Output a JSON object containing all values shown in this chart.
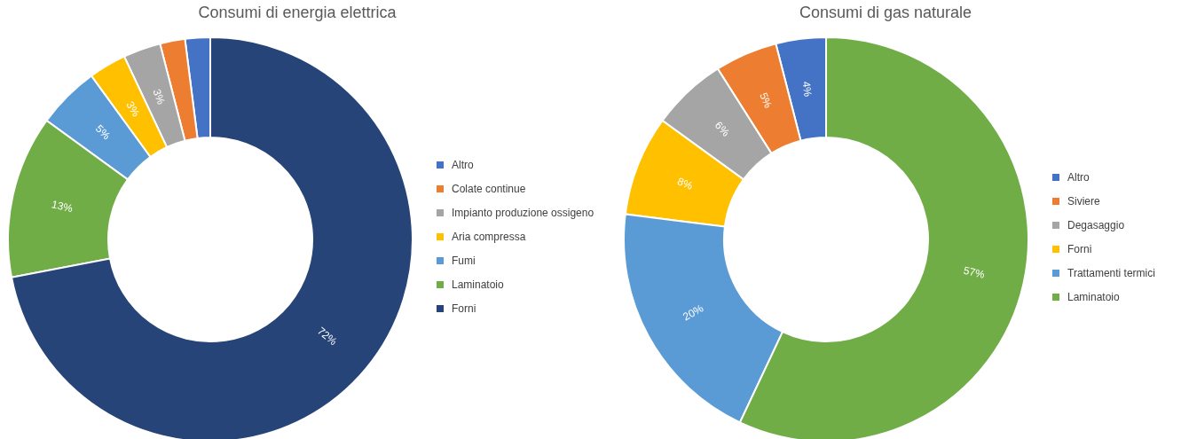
{
  "chart_data": [
    {
      "type": "donut",
      "title": "Consumi di energia elettrica",
      "categories": [
        "Altro",
        "Colate continue",
        "Impianto produzione ossigeno",
        "Aria compressa",
        "Fumi",
        "Laminatoio",
        "Forni"
      ],
      "values": [
        2,
        2,
        3,
        3,
        5,
        13,
        72
      ],
      "colors": [
        "#4472c4",
        "#ed7d31",
        "#a5a5a5",
        "#ffc000",
        "#5b9bd5",
        "#70ad47",
        "#264478"
      ],
      "value_labels": [
        null,
        null,
        "3%",
        "3%",
        "5%",
        "13%",
        "72%"
      ],
      "legend": "right"
    },
    {
      "type": "donut",
      "title": "Consumi di gas naturale",
      "categories": [
        "Altro",
        "Siviere",
        "Degasaggio",
        "Forni",
        "Trattamenti termici",
        "Laminatoio"
      ],
      "values": [
        4,
        5,
        6,
        8,
        20,
        57
      ],
      "colors": [
        "#4472c4",
        "#ed7d31",
        "#a5a5a5",
        "#ffc000",
        "#5b9bd5",
        "#70ad47"
      ],
      "value_labels": [
        "4%",
        "5%",
        "6%",
        "8%",
        "20%",
        "57%"
      ],
      "legend": "right"
    }
  ]
}
